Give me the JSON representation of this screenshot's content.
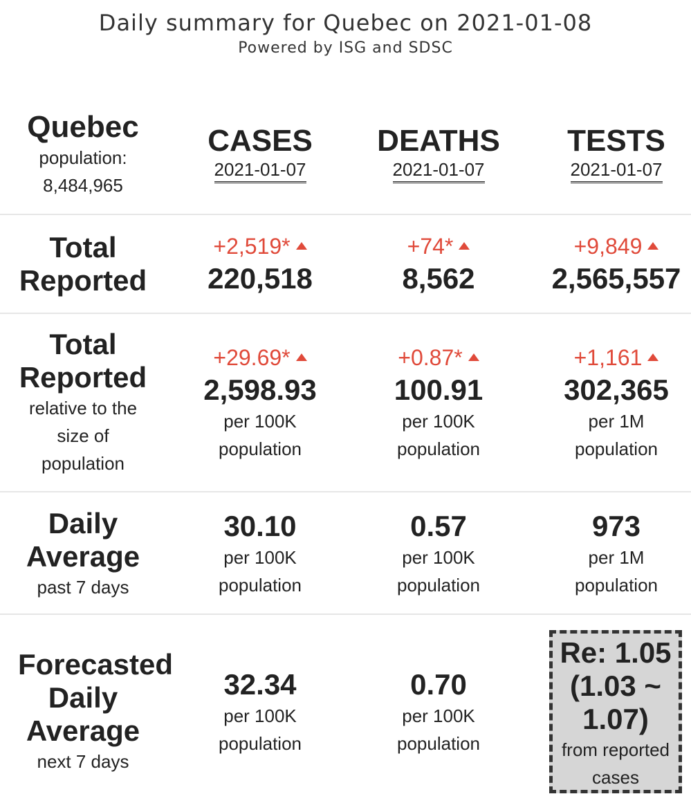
{
  "title": "Daily summary for Quebec on 2021-01-08",
  "subtitle": "Powered by ISG and SDSC",
  "region": {
    "name": "Quebec",
    "population_label": "population:",
    "population": "8,484,965"
  },
  "columns": {
    "cases": {
      "label": "CASES",
      "date": "2021-01-07"
    },
    "deaths": {
      "label": "DEATHS",
      "date": "2021-01-07"
    },
    "tests": {
      "label": "TESTS",
      "date": "2021-01-07"
    }
  },
  "rows": {
    "total": {
      "label_line1": "Total",
      "label_line2": "Reported",
      "cases": {
        "delta": "+2,519*",
        "value": "220,518"
      },
      "deaths": {
        "delta": "+74*",
        "value": "8,562"
      },
      "tests": {
        "delta": "+9,849",
        "value": "2,565,557"
      }
    },
    "relative": {
      "label_line1": "Total",
      "label_line2": "Reported",
      "note_line1": "relative to the",
      "note_line2": "size of",
      "note_line3": "population",
      "cases": {
        "delta": "+29.69*",
        "value": "2,598.93",
        "unit1": "per 100K",
        "unit2": "population"
      },
      "deaths": {
        "delta": "+0.87*",
        "value": "100.91",
        "unit1": "per 100K",
        "unit2": "population"
      },
      "tests": {
        "delta": "+1,161",
        "value": "302,365",
        "unit1": "per 1M",
        "unit2": "population"
      }
    },
    "daily_avg": {
      "label_line1": "Daily",
      "label_line2": "Average",
      "note": "past 7 days",
      "cases": {
        "value": "30.10",
        "unit1": "per 100K",
        "unit2": "population"
      },
      "deaths": {
        "value": "0.57",
        "unit1": "per 100K",
        "unit2": "population"
      },
      "tests": {
        "value": "973",
        "unit1": "per 1M",
        "unit2": "population"
      }
    },
    "forecast": {
      "label_line1": "Forecasted",
      "label_line2": "Daily",
      "label_line3": "Average",
      "note": "next 7 days",
      "cases": {
        "value": "32.34",
        "unit1": "per 100K",
        "unit2": "population"
      },
      "deaths": {
        "value": "0.70",
        "unit1": "per 100K",
        "unit2": "population"
      },
      "re": {
        "line1": "Re: 1.05",
        "line2": "(1.03 ~",
        "line3": "1.07)",
        "note1": "from reported",
        "note2": "cases"
      }
    }
  },
  "colors": {
    "increase": "#e04a3a",
    "re_box_bg": "#d6d6d6",
    "separator": "#e6e6e6"
  },
  "icons": {
    "increase": "triangle-up-icon"
  }
}
